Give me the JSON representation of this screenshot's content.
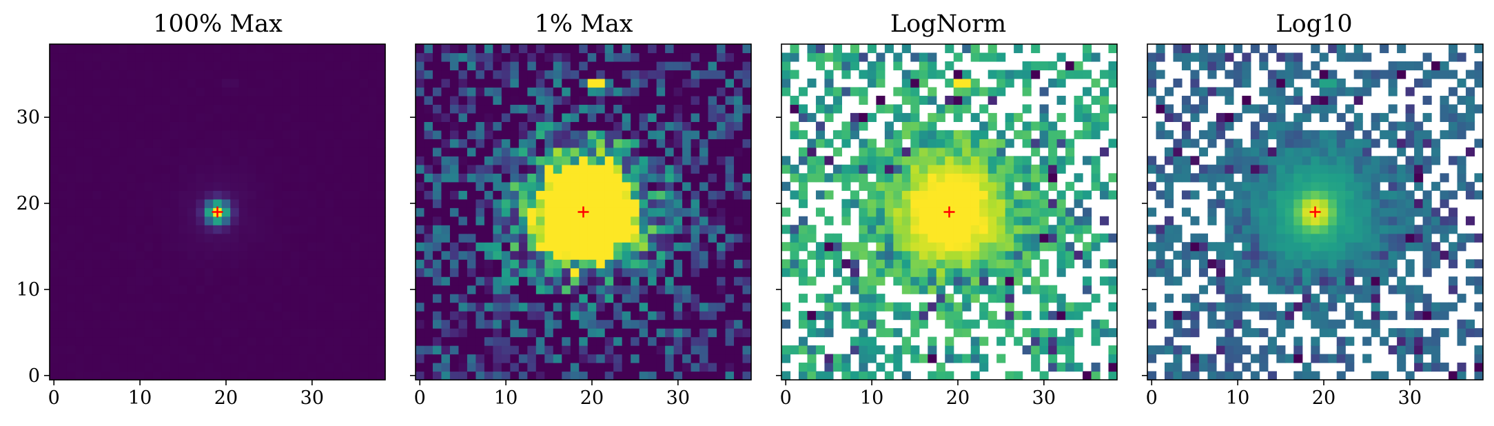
{
  "chart_data": [
    {
      "type": "heatmap",
      "title": "100% Max",
      "xticks": [
        "0",
        "10",
        "20",
        "30"
      ],
      "yticks": [
        "0",
        "10",
        "20",
        "30"
      ],
      "xlim": [
        -0.5,
        38.5
      ],
      "ylim": [
        -0.5,
        38.5
      ],
      "colormap": "viridis",
      "scale": "linear",
      "marker": {
        "x": 19,
        "y": 19,
        "symbol": "+",
        "color": "#ff0000"
      }
    },
    {
      "type": "heatmap",
      "title": "1% Max",
      "xticks": [
        "0",
        "10",
        "20",
        "30"
      ],
      "yticks": [],
      "xlim": [
        -0.5,
        38.5
      ],
      "ylim": [
        -0.5,
        38.5
      ],
      "colormap": "viridis",
      "scale": "linear",
      "marker": {
        "x": 19,
        "y": 19,
        "symbol": "+",
        "color": "#ff0000"
      }
    },
    {
      "type": "heatmap",
      "title": "LogNorm",
      "xticks": [
        "0",
        "10",
        "20",
        "30"
      ],
      "yticks": [],
      "xlim": [
        -0.5,
        38.5
      ],
      "ylim": [
        -0.5,
        38.5
      ],
      "colormap": "viridis",
      "scale": "log",
      "marker": {
        "x": 19,
        "y": 19,
        "symbol": "+",
        "color": "#ff0000"
      }
    },
    {
      "type": "heatmap",
      "title": "Log10",
      "xticks": [
        "0",
        "10",
        "20",
        "30"
      ],
      "yticks": [],
      "xlim": [
        -0.5,
        38.5
      ],
      "ylim": [
        -0.5,
        38.5
      ],
      "colormap": "viridis",
      "scale": "log10",
      "marker": {
        "x": 19,
        "y": 19,
        "symbol": "+",
        "color": "#ff0000"
      }
    }
  ]
}
